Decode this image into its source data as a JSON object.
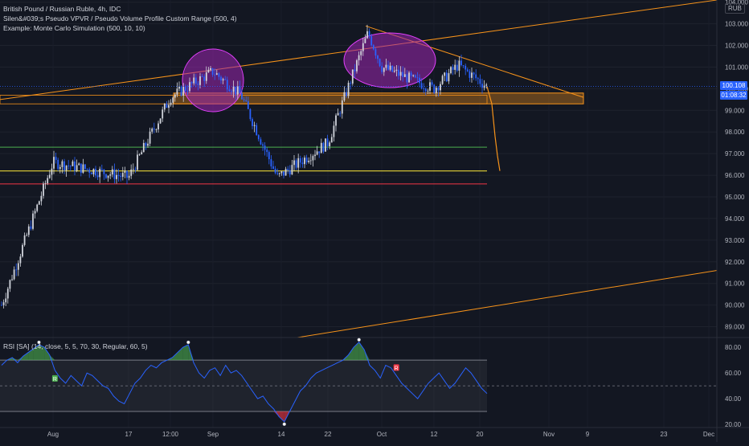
{
  "legend": {
    "line1": "British Pound / Russian Ruble, 4h, IDC",
    "line2": "Silen&#039;s Pseudo VPVR / Pseudo Volume Profile Custom Range (500, 4)",
    "line3": "Example: Monte Carlo Simulation (500, 10, 10)"
  },
  "currency": "RUB",
  "current_price_label": "100.108",
  "countdown_label": "01:08:32",
  "rsi_legend": "RSI [SA] (14, close, 5, 5, 70, 30, Regular, 60, 5)",
  "colors": {
    "background": "#131722",
    "candle_up": "#d1d4dc",
    "candle_down": "#2962ff",
    "trendline": "#f7931a",
    "zone": "#f7931a",
    "ellipse": "#9c27b0",
    "green_line": "#4caf50",
    "yellow_line": "#ffeb3b",
    "red_line": "#f23645",
    "rsi_line": "#2962ff",
    "current_price": "#2962ff"
  },
  "chart_data": [
    {
      "type": "candlestick",
      "title": "British Pound / Russian Ruble, 4h, IDC",
      "ylim": [
        88.5,
        104.1
      ],
      "y_ticks": [
        "89.000",
        "90.000",
        "91.000",
        "92.000",
        "93.000",
        "94.000",
        "95.000",
        "96.000",
        "97.000",
        "98.000",
        "99.000",
        "100.000",
        "101.000",
        "102.000",
        "103.000",
        "104.000"
      ],
      "x_tick_labels": [
        "Aug",
        "17",
        "12:00",
        "Sep",
        "14",
        "22",
        "Oct",
        "12",
        "20",
        "Nov",
        "9",
        "23",
        "Dec"
      ],
      "close_path_keypoints": [
        {
          "x": "start",
          "y": 90.0
        },
        {
          "x": "Aug",
          "y": 96.6
        },
        {
          "x": "17",
          "y": 95.9
        },
        {
          "x": "12:00",
          "y": 99.6
        },
        {
          "x": "Sep (early)",
          "y": 100.8
        },
        {
          "x": "Sep (mid)",
          "y": 99.7
        },
        {
          "x": "14",
          "y": 95.9
        },
        {
          "x": "22",
          "y": 97.5
        },
        {
          "x": "late Sep",
          "y": 102.6
        },
        {
          "x": "Oct",
          "y": 101.0
        },
        {
          "x": "12",
          "y": 100.0
        },
        {
          "x": "Oct (mid)",
          "y": 101.1
        },
        {
          "x": "20",
          "y": 100.1
        }
      ],
      "current_price": 100.108,
      "horizontal_lines": {
        "green": 97.3,
        "yellow": 96.2,
        "red": 95.6
      },
      "zone": {
        "low": 99.3,
        "high": 99.7
      },
      "forecast_path": [
        100.1,
        99.3,
        97.8,
        96.9,
        96.2
      ],
      "annotations": [
        "two ellipses marking tops",
        "rising and falling trendlines"
      ]
    },
    {
      "type": "line",
      "title": "RSI [SA] (14, close, 5, 5, 70, 30, Regular, 60, 5)",
      "ylim": [
        17.5,
        87
      ],
      "y_ticks": [
        "20.00",
        "40.00",
        "60.00",
        "80.00"
      ],
      "bands": {
        "upper": 70,
        "mid": 50,
        "lower": 30
      },
      "values": [
        66,
        70,
        72,
        68,
        73,
        76,
        79,
        82,
        80,
        74,
        62,
        56,
        52,
        58,
        54,
        50,
        60,
        58,
        54,
        50,
        48,
        42,
        38,
        36,
        44,
        52,
        56,
        62,
        66,
        64,
        68,
        70,
        72,
        76,
        80,
        82,
        68,
        60,
        56,
        62,
        64,
        58,
        66,
        60,
        62,
        58,
        52,
        46,
        40,
        42,
        36,
        32,
        26,
        22,
        30,
        38,
        46,
        50,
        56,
        60,
        62,
        64,
        66,
        68,
        70,
        74,
        80,
        84,
        78,
        66,
        62,
        56,
        66,
        64,
        58,
        52,
        48,
        44,
        40,
        46,
        52,
        56,
        60,
        54,
        48,
        52,
        58,
        64,
        60,
        54,
        48,
        44
      ],
      "markers": [
        {
          "index": 10,
          "label": "R",
          "color": "#4caf50"
        },
        {
          "index": 74,
          "label": "R",
          "color": "#f23645"
        }
      ]
    }
  ]
}
